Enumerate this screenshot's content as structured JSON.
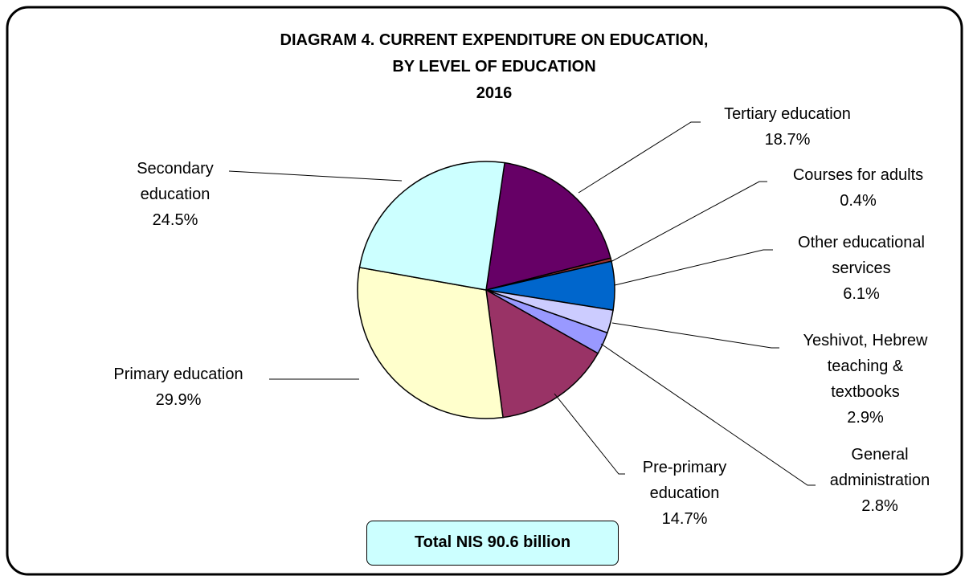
{
  "chart_data": {
    "type": "pie",
    "title": "DIAGRAM 4. CURRENT EXPENDITURE ON EDUCATION,\nBY LEVEL OF EDUCATION",
    "subtitle": "2016",
    "annotation": "Total NIS 90.6 billion",
    "categories": [
      "Tertiary education",
      "Courses for adults",
      "Other educational\nservices",
      "Yeshivot, Hebrew\nteaching &\ntextbooks",
      "General\nadministration",
      "Pre-primary\neducation",
      "Primary education",
      "Secondary\neducation"
    ],
    "values": [
      18.7,
      0.4,
      6.1,
      2.9,
      2.8,
      14.7,
      29.9,
      24.5
    ],
    "value_labels": [
      "18.7%",
      "0.4%",
      "6.1%",
      "2.9%",
      "2.8%",
      "14.7%",
      "29.9%",
      "24.5%"
    ],
    "colors": [
      "#660066",
      "#993333",
      "#0066cc",
      "#ccccff",
      "#9999ff",
      "#993366",
      "#ffffcc",
      "#ccffff"
    ]
  }
}
